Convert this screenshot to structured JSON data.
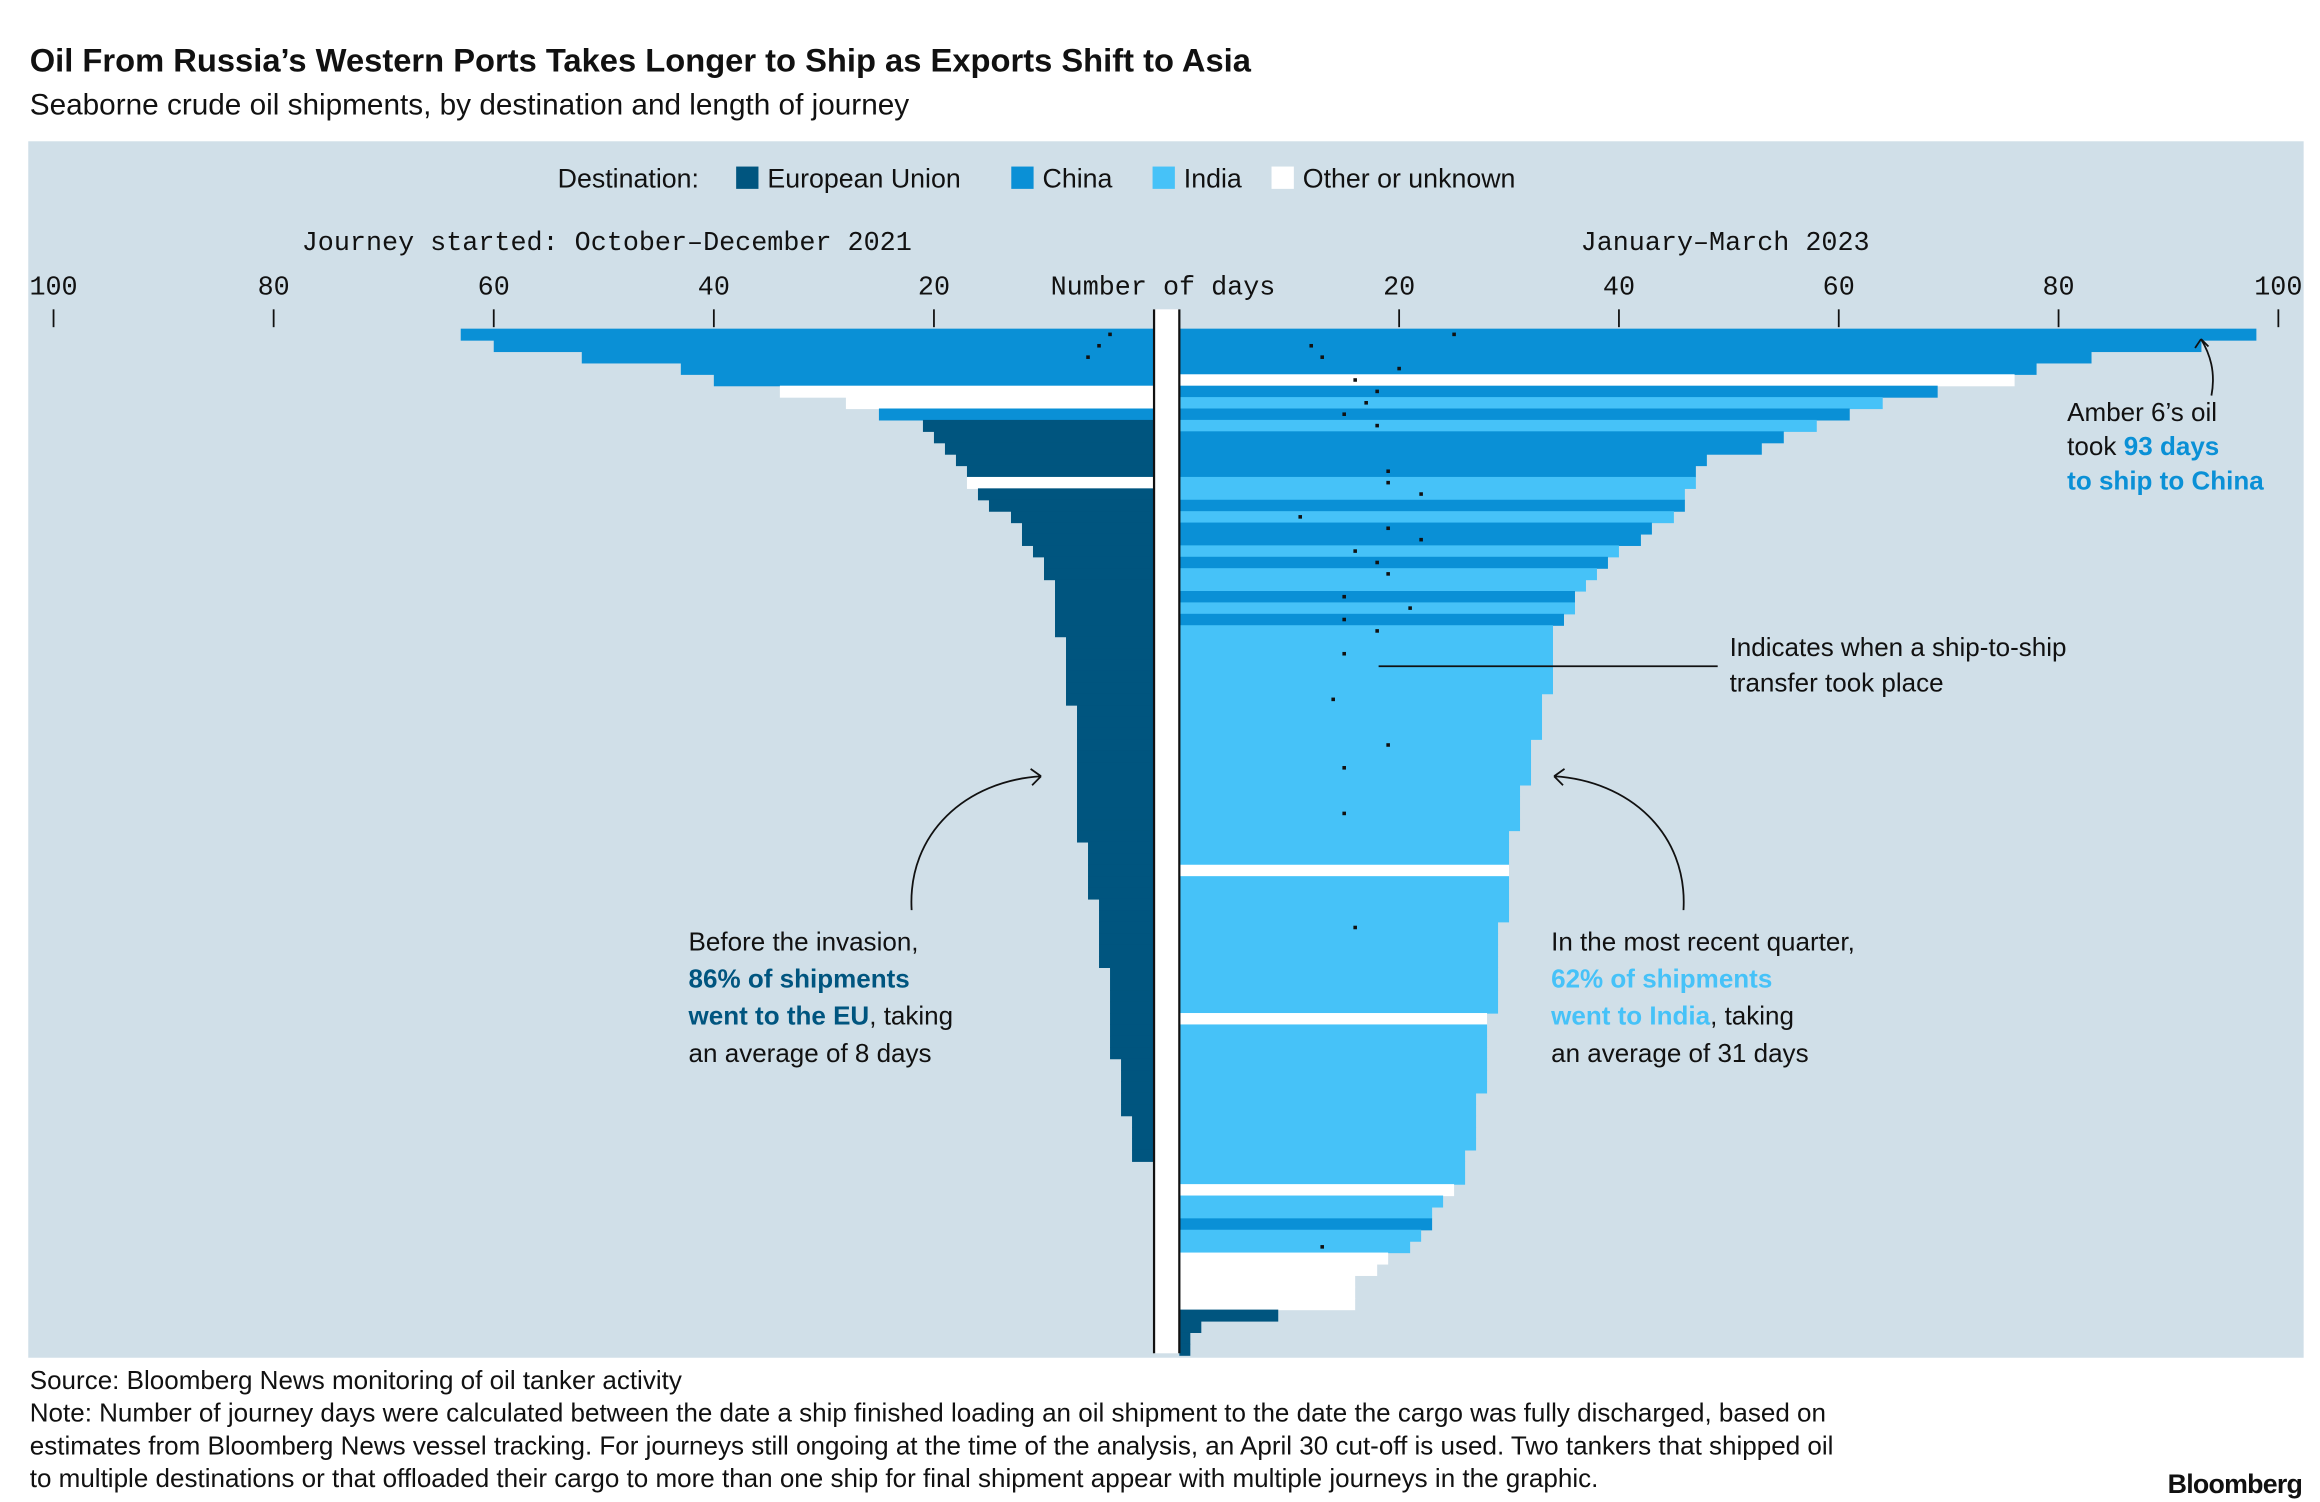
{
  "title": "Oil From Russia’s Western Ports Takes Longer to Ship as Exports Shift to Asia",
  "subtitle": "Seaborne crude oil shipments, by destination and length of journey",
  "legend": {
    "title": "Destination:",
    "entries": [
      {
        "name": "European Union",
        "color": "#00557f"
      },
      {
        "name": "China",
        "color": "#0a90d6"
      },
      {
        "name": "India",
        "color": "#46c2f8"
      },
      {
        "name": "Other or unknown",
        "color": "#ffffff"
      }
    ]
  },
  "x_label": "Number of days",
  "chart_data": [
    {
      "type": "bar",
      "orientation": "horizontal",
      "reversed": true,
      "title": "Journey started: October–December 2021",
      "xlim": [
        0,
        100
      ],
      "xticks": [
        100,
        80,
        60,
        40,
        20
      ],
      "values": [
        63,
        60,
        52,
        43,
        40,
        34,
        28,
        25,
        21,
        20,
        19,
        18,
        17,
        17,
        16,
        15,
        13,
        12,
        12,
        11,
        10,
        10,
        9,
        9,
        9,
        9,
        9,
        8,
        8,
        8,
        8,
        8,
        8,
        7,
        7,
        7,
        7,
        7,
        7,
        7,
        7,
        7,
        7,
        7,
        7,
        6,
        6,
        6,
        6,
        6,
        5,
        5,
        5,
        5,
        5,
        5,
        4,
        4,
        4,
        4,
        4,
        4,
        4,
        4,
        3,
        3,
        3,
        3,
        3,
        2,
        2,
        2,
        2
      ],
      "destinations": [
        "China",
        "China",
        "China",
        "China",
        "China",
        "Other or unknown",
        "Other or unknown",
        "China",
        "European Union",
        "European Union",
        "European Union",
        "European Union",
        "European Union",
        "Other or unknown",
        "European Union",
        "European Union",
        "European Union",
        "European Union",
        "European Union",
        "European Union",
        "European Union",
        "European Union",
        "European Union",
        "European Union",
        "European Union",
        "European Union",
        "European Union",
        "European Union",
        "European Union",
        "European Union",
        "European Union",
        "European Union",
        "European Union",
        "European Union",
        "European Union",
        "European Union",
        "European Union",
        "European Union",
        "European Union",
        "European Union",
        "European Union",
        "European Union",
        "European Union",
        "European Union",
        "European Union",
        "European Union",
        "European Union",
        "European Union",
        "European Union",
        "European Union",
        "European Union",
        "European Union",
        "European Union",
        "European Union",
        "European Union",
        "European Union",
        "European Union",
        "European Union",
        "European Union",
        "European Union",
        "European Union",
        "European Union",
        "European Union",
        "European Union",
        "European Union",
        "European Union",
        "European Union",
        "European Union",
        "European Union",
        "European Union",
        "European Union",
        "European Union",
        "European Union"
      ],
      "transfer_days": [
        4,
        5,
        6,
        null,
        null,
        null,
        null,
        null,
        null,
        null,
        null,
        null,
        null,
        null,
        null,
        null,
        null,
        null,
        null,
        null,
        null,
        null,
        null,
        null,
        null,
        null,
        null,
        null,
        null,
        null,
        null,
        null,
        null,
        null,
        null,
        null,
        null,
        null,
        null,
        null,
        null,
        null,
        null,
        null,
        null,
        null,
        null,
        null,
        null,
        null,
        null,
        null,
        null,
        null,
        null,
        null,
        null,
        null,
        null,
        null,
        null,
        null,
        null,
        null,
        null,
        null,
        null,
        null,
        null,
        null,
        null,
        null,
        null
      ]
    },
    {
      "type": "bar",
      "orientation": "horizontal",
      "reversed": false,
      "title": "January–March 2023",
      "xlim": [
        0,
        100
      ],
      "xticks": [
        20,
        40,
        60,
        80,
        100
      ],
      "values": [
        98,
        93,
        83,
        78,
        76,
        69,
        64,
        61,
        58,
        55,
        53,
        48,
        47,
        47,
        46,
        46,
        45,
        43,
        42,
        40,
        39,
        38,
        37,
        36,
        36,
        35,
        34,
        34,
        34,
        34,
        34,
        34,
        33,
        33,
        33,
        33,
        32,
        32,
        32,
        32,
        31,
        31,
        31,
        31,
        30,
        30,
        30,
        30,
        30,
        30,
        30,
        30,
        29,
        29,
        29,
        29,
        29,
        29,
        29,
        29,
        28,
        28,
        28,
        28,
        28,
        28,
        28,
        27,
        27,
        27,
        27,
        27,
        26,
        26,
        26,
        25,
        24,
        23,
        23,
        22,
        21,
        19,
        18,
        16,
        16,
        16,
        9,
        2,
        1,
        1
      ],
      "destinations": [
        "China",
        "China",
        "China",
        "China",
        "Other or unknown",
        "China",
        "India",
        "China",
        "India",
        "China",
        "China",
        "China",
        "China",
        "India",
        "India",
        "China",
        "India",
        "China",
        "China",
        "India",
        "China",
        "India",
        "India",
        "China",
        "India",
        "China",
        "India",
        "India",
        "India",
        "India",
        "India",
        "India",
        "India",
        "India",
        "India",
        "India",
        "India",
        "India",
        "India",
        "India",
        "India",
        "India",
        "India",
        "India",
        "India",
        "India",
        "India",
        "Other or unknown",
        "India",
        "India",
        "India",
        "India",
        "India",
        "India",
        "India",
        "India",
        "India",
        "India",
        "India",
        "India",
        "Other or unknown",
        "India",
        "India",
        "India",
        "India",
        "India",
        "India",
        "India",
        "India",
        "India",
        "India",
        "India",
        "India",
        "India",
        "India",
        "Other or unknown",
        "India",
        "India",
        "China",
        "India",
        "India",
        "Other or unknown",
        "Other or unknown",
        "Other or unknown",
        "Other or unknown",
        "Other or unknown",
        "European Union",
        "European Union",
        "European Union",
        "European Union"
      ],
      "transfer_days": [
        25,
        12,
        13,
        20,
        16,
        18,
        17,
        15,
        18,
        null,
        null,
        null,
        19,
        19,
        22,
        null,
        11,
        19,
        22,
        16,
        18,
        19,
        null,
        15,
        21,
        15,
        18,
        null,
        15,
        null,
        null,
        null,
        14,
        null,
        null,
        null,
        19,
        null,
        15,
        null,
        null,
        null,
        15,
        null,
        null,
        null,
        null,
        null,
        null,
        null,
        null,
        null,
        16,
        null,
        null,
        null,
        null,
        null,
        null,
        null,
        null,
        null,
        null,
        null,
        null,
        null,
        null,
        null,
        null,
        null,
        null,
        null,
        null,
        null,
        null,
        null,
        null,
        null,
        null,
        null,
        13,
        null,
        null,
        null,
        null,
        null,
        null,
        null,
        null,
        null
      ]
    }
  ],
  "annotations": {
    "amber": [
      [
        "Amber 6’s oil"
      ],
      [
        "took",
        "93 days"
      ],
      [
        "to ship to China"
      ]
    ],
    "transfer": [
      "Indicates when a ship-to-ship",
      "transfer took place"
    ],
    "invasion": [
      [
        "Before the invasion,"
      ],
      [
        "86% of shipments"
      ],
      [
        "went to the EU",
        ", taking"
      ],
      [
        "an average of 8 days"
      ]
    ],
    "recent": [
      [
        "In the most recent quarter,"
      ],
      [
        "62% of shipments"
      ],
      [
        "went to India",
        ", taking"
      ],
      [
        "an average of 31 days"
      ]
    ]
  },
  "source": "Source: Bloomberg News monitoring of oil tanker activity",
  "note": [
    "Note: Number of journey days were calculated between the date a ship finished loading an oil shipment to the date the cargo was fully discharged, based on",
    "estimates from Bloomberg News vessel tracking. For journeys still ongoing at the time of the analysis, an April 30 cut-off is used. Two tankers that shipped oil",
    "to multiple destinations or that offloaded their cargo to more than one ship for final shipment appear with multiple journeys in the graphic."
  ],
  "brand": "Bloomberg"
}
